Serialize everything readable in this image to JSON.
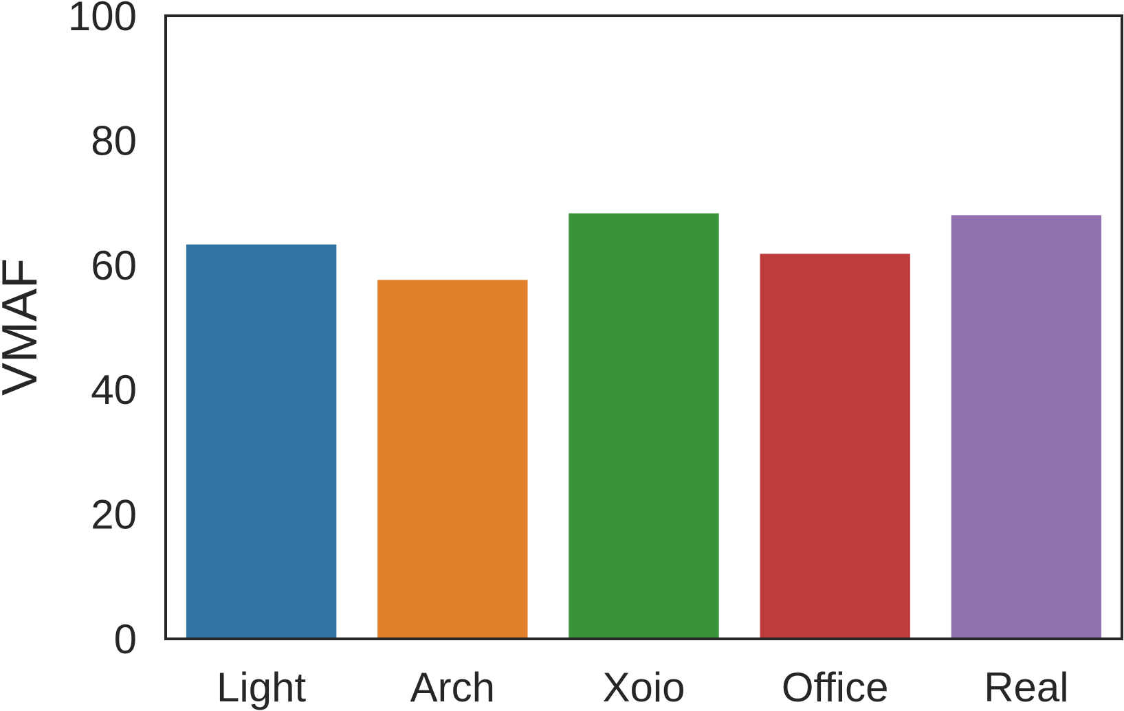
{
  "chart_data": {
    "type": "bar",
    "title": "",
    "xlabel": "",
    "ylabel": "VMAF",
    "categories": [
      "Light",
      "Arch",
      "Xoio",
      "Office",
      "Real"
    ],
    "values": [
      63.3,
      57.6,
      68.3,
      61.8,
      68.0
    ],
    "colors": [
      "#3274a1",
      "#e1812c",
      "#3a923a",
      "#c03d3e",
      "#9372b2"
    ],
    "ylim": [
      0,
      100
    ],
    "yticks": [
      0,
      20,
      40,
      60,
      80,
      100
    ],
    "grid": false,
    "legend": "none"
  }
}
